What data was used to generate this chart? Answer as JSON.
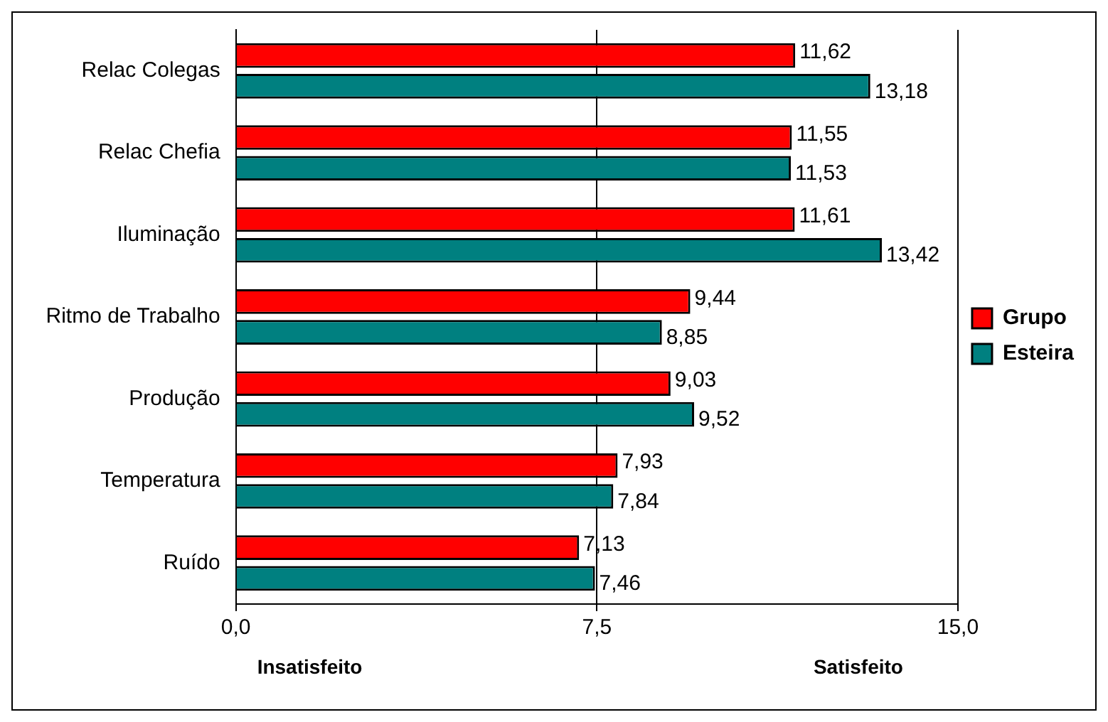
{
  "chart_data": {
    "type": "bar",
    "orientation": "horizontal",
    "categories": [
      "Relac Colegas",
      "Relac Chefia",
      "Iluminação",
      "Ritmo de Trabalho",
      "Produção",
      "Temperatura",
      "Ruído"
    ],
    "series": [
      {
        "name": "Grupo",
        "color": "#ff0000",
        "values": [
          11.62,
          11.55,
          11.61,
          9.44,
          9.03,
          7.93,
          7.13
        ],
        "value_labels": [
          "11,62",
          "11,55",
          "11,61",
          "9,44",
          "9,03",
          "7,93",
          "7,13"
        ]
      },
      {
        "name": "Esteira",
        "color": "#008080",
        "values": [
          13.18,
          11.53,
          13.42,
          8.85,
          9.52,
          7.84,
          7.46
        ],
        "value_labels": [
          "13,18",
          "11,53",
          "13,42",
          "8,85",
          "9,52",
          "7,84",
          "7,46"
        ]
      }
    ],
    "xlim": [
      0,
      15
    ],
    "xticks": [
      {
        "value": 0,
        "label": "0,0"
      },
      {
        "value": 7.5,
        "label": "7,5"
      },
      {
        "value": 15,
        "label": "15,0"
      }
    ],
    "grid": "x",
    "legend": "right",
    "annotations": [
      "Insatisfeito",
      "Satisfeito"
    ]
  }
}
